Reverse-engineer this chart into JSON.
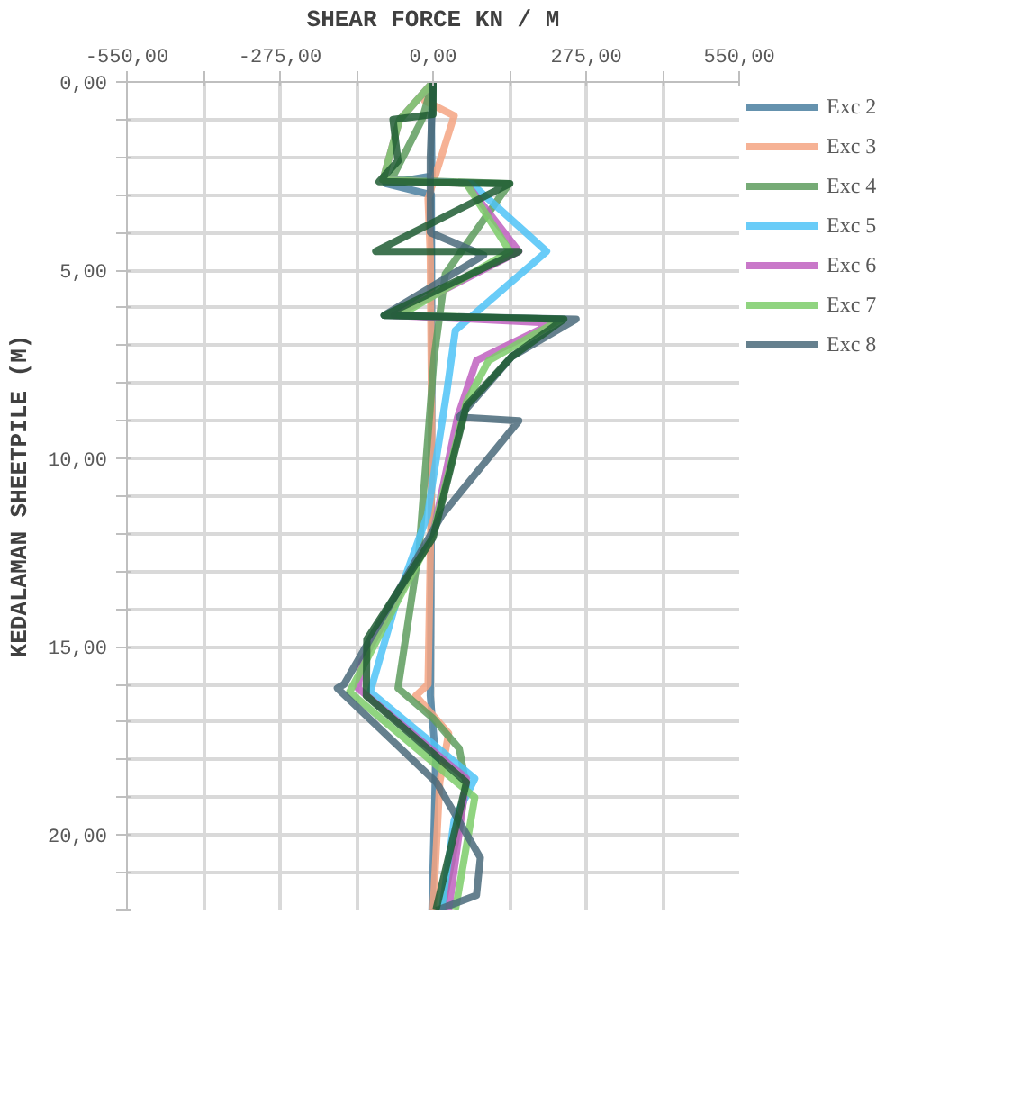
{
  "chart_data": {
    "type": "line",
    "xlabel": "SHEAR FORCE KN / M",
    "ylabel": "KEDALAMAN SHEETPILE (M)",
    "xlim": [
      -550,
      550
    ],
    "xticks": [
      {
        "value": -550,
        "label": "-550,00"
      },
      {
        "value": -412.5,
        "label": null
      },
      {
        "value": -275,
        "label": "-275,00"
      },
      {
        "value": -137.5,
        "label": null
      },
      {
        "value": 0,
        "label": "0,00"
      },
      {
        "value": 137.5,
        "label": null
      },
      {
        "value": 275,
        "label": "275,00"
      },
      {
        "value": 412.5,
        "label": null
      },
      {
        "value": 550,
        "label": "550,00"
      }
    ],
    "ylim": [
      22,
      0
    ],
    "yticks": [
      {
        "value": 0,
        "label": "0,00"
      },
      {
        "value": 1,
        "label": null
      },
      {
        "value": 2,
        "label": null
      },
      {
        "value": 3,
        "label": null
      },
      {
        "value": 4,
        "label": null
      },
      {
        "value": 5,
        "label": "5,00"
      },
      {
        "value": 6,
        "label": null
      },
      {
        "value": 7,
        "label": null
      },
      {
        "value": 8,
        "label": null
      },
      {
        "value": 9,
        "label": null
      },
      {
        "value": 10,
        "label": "10,00"
      },
      {
        "value": 11,
        "label": null
      },
      {
        "value": 12,
        "label": null
      },
      {
        "value": 13,
        "label": null
      },
      {
        "value": 14,
        "label": null
      },
      {
        "value": 15,
        "label": "15,00"
      },
      {
        "value": 16,
        "label": null
      },
      {
        "value": 17,
        "label": null
      },
      {
        "value": 18,
        "label": null
      },
      {
        "value": 19,
        "label": null
      },
      {
        "value": 20,
        "label": "20,00"
      },
      {
        "value": 21,
        "label": null
      },
      {
        "value": 22,
        "label": null
      }
    ],
    "grid": true,
    "legend": "right",
    "marker": "none",
    "line_style": "solid",
    "series": [
      {
        "name": "Exc 2",
        "color": "#4a7fa0",
        "x": [
          0,
          -3,
          -2,
          -85,
          -3,
          -2,
          -4,
          -5,
          5,
          -2
        ],
        "values": [
          0,
          1.0,
          2.5,
          2.7,
          3.0,
          8,
          14,
          16.3,
          18,
          22
        ]
      },
      {
        "name": "Exc 3",
        "color": "#f4a582",
        "x": [
          0,
          -15,
          38,
          -9,
          -5,
          -2,
          -9,
          -31,
          28,
          12,
          0
        ],
        "values": [
          0,
          0.5,
          0.9,
          3.1,
          4.6,
          10,
          16,
          16.3,
          17.3,
          18.6,
          22
        ]
      },
      {
        "name": "Exc 4",
        "color": "#5e9c5e",
        "x": [
          0,
          -20,
          -75,
          137,
          22,
          2,
          -25,
          -63,
          0,
          47,
          60,
          16
        ],
        "values": [
          0,
          1.0,
          2.6,
          2.7,
          5.1,
          7.3,
          12.4,
          16.1,
          16.9,
          17.7,
          18.7,
          22
        ]
      },
      {
        "name": "Exc 5",
        "color": "#4fc3f7",
        "x": [
          -90,
          69,
          204,
          40,
          25,
          -10,
          -66,
          -113,
          75,
          38,
          16
        ],
        "values": [
          2.6,
          2.7,
          4.5,
          6.6,
          8.2,
          11.5,
          13.8,
          16.2,
          18.5,
          19.6,
          22
        ]
      },
      {
        "name": "Exc 6",
        "color": "#c060c0",
        "x": [
          0,
          -60,
          -90,
          60,
          154,
          -70,
          216,
          78,
          44,
          0,
          -128,
          -135,
          60,
          28
        ],
        "values": [
          0,
          1.0,
          2.6,
          2.7,
          4.5,
          6.2,
          6.4,
          7.4,
          8.9,
          12,
          15.4,
          16.1,
          18.5,
          22
        ]
      },
      {
        "name": "Exc 7",
        "color": "#7dcc6a",
        "x": [
          0,
          -60,
          -90,
          60,
          138,
          -60,
          230,
          100,
          60,
          0,
          -150,
          75,
          40
        ],
        "values": [
          0,
          1.0,
          2.6,
          2.7,
          4.5,
          6.2,
          6.3,
          7.4,
          8.5,
          12,
          16.2,
          19,
          22
        ]
      },
      {
        "name": "Exc 8",
        "color": "#4a6a7a",
        "x": [
          0,
          -5,
          -5,
          91,
          -88,
          257,
          141,
          47,
          154,
          16,
          -160,
          -172,
          6,
          85,
          78,
          6
        ],
        "values": [
          0,
          2.0,
          4.0,
          4.6,
          6.2,
          6.3,
          7.3,
          8.9,
          9.0,
          11.5,
          16,
          16.1,
          18.6,
          20.6,
          21.6,
          22
        ]
      },
      {
        "color": "#1f5c33",
        "x": [
          0,
          0,
          -72,
          -63,
          -97,
          138,
          -103,
          154,
          -88,
          235,
          141,
          60,
          0,
          -119,
          -120,
          60,
          5
        ],
        "values": [
          0,
          0.86,
          1.0,
          2.1,
          2.65,
          2.7,
          4.5,
          4.5,
          6.2,
          6.3,
          7.3,
          8.6,
          12.1,
          14.8,
          16.3,
          18.6,
          22
        ]
      }
    ]
  }
}
